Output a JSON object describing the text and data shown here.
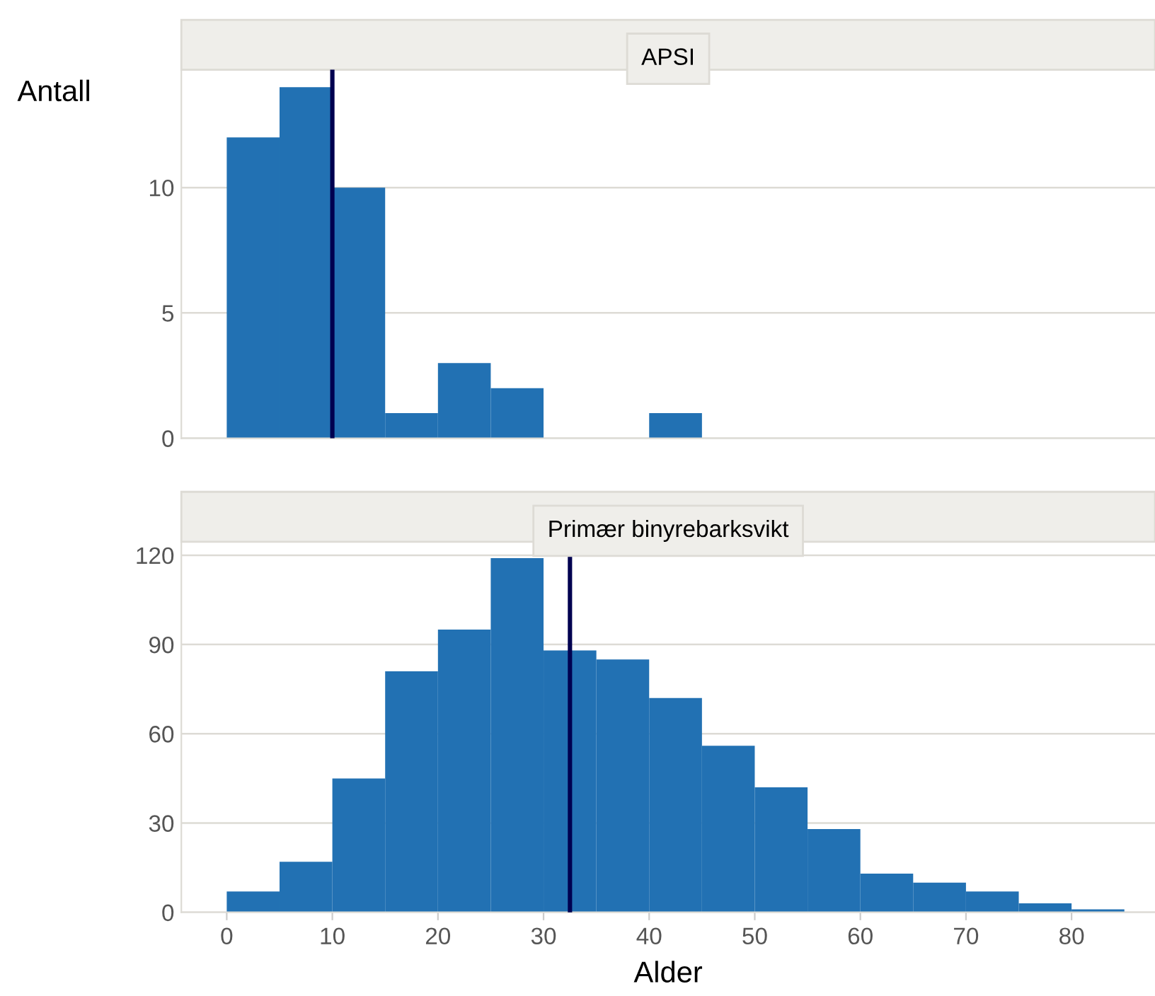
{
  "chart_data": [
    {
      "type": "histogram",
      "title": "APSI",
      "ylabel": "Antall",
      "bins": [
        0,
        5,
        10,
        15,
        20,
        25,
        30,
        35,
        40,
        45
      ],
      "values": [
        12,
        14,
        10,
        1,
        3,
        2,
        0,
        0,
        1
      ],
      "color": "#2271b3",
      "xlim": [
        -4.3,
        87.9
      ],
      "ylim": [
        0,
        14.7
      ],
      "yticks": [
        0,
        5,
        10
      ],
      "grid": "y",
      "tick_labels": "y",
      "ref_lines": [
        {
          "axis": "x",
          "value": 10,
          "color": "#000050"
        }
      ]
    },
    {
      "type": "histogram",
      "title": "Primær binyrebarksvikt",
      "xlabel": "Alder",
      "bins": [
        0,
        5,
        10,
        15,
        20,
        25,
        30,
        35,
        40,
        45,
        50,
        55,
        60,
        65,
        70,
        75,
        80,
        85
      ],
      "values": [
        7,
        17,
        45,
        81,
        95,
        119,
        88,
        85,
        72,
        56,
        42,
        28,
        13,
        10,
        7,
        3,
        1
      ],
      "color": "#2271b3",
      "xlim": [
        -4.3,
        87.9
      ],
      "ylim": [
        0,
        124.5
      ],
      "xticks": [
        0,
        10,
        20,
        30,
        40,
        50,
        60,
        70,
        80
      ],
      "yticks": [
        0,
        30,
        60,
        90,
        120
      ],
      "grid": "y",
      "ref_lines": [
        {
          "axis": "x",
          "value": 32.5,
          "color": "#000050"
        }
      ]
    }
  ]
}
